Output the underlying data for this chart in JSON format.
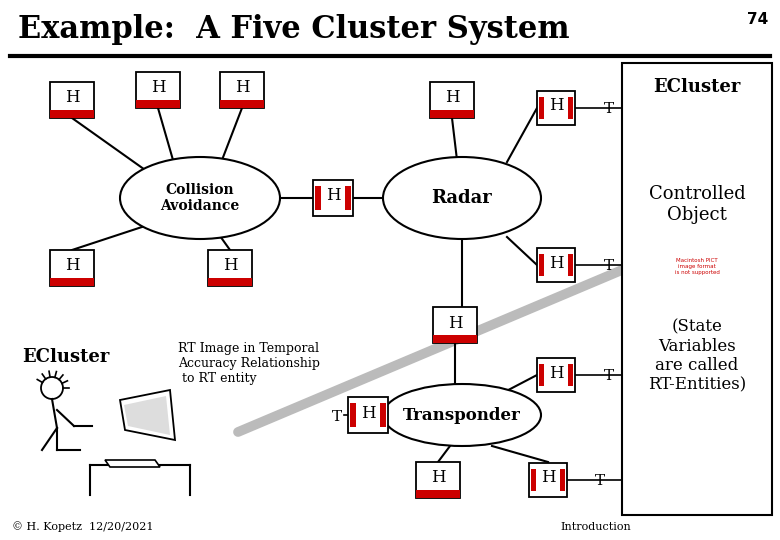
{
  "title": "Example:  A Five Cluster System",
  "page_num": "74",
  "background_color": "#ffffff",
  "title_fontsize": 22,
  "ecluster_right_title": "ECluster",
  "controlled_object_text": "Controlled\nObject",
  "state_vars_text": "(State\nVariables\nare called\nRT-Entities)",
  "ecluster_left_label": "ECluster",
  "rt_image_text": "RT Image in Temporal\nAccuracy Relationship\n to RT entity",
  "collision_avoidance_text": "Collision\nAvoidance",
  "radar_text": "Radar",
  "transponder_text": "Transponder",
  "footer_left": "© H. Kopetz  12/20/2021",
  "footer_right": "Introduction",
  "h_bar_color": "#cc0000",
  "diagonal_line_color": "#bbbbbb"
}
